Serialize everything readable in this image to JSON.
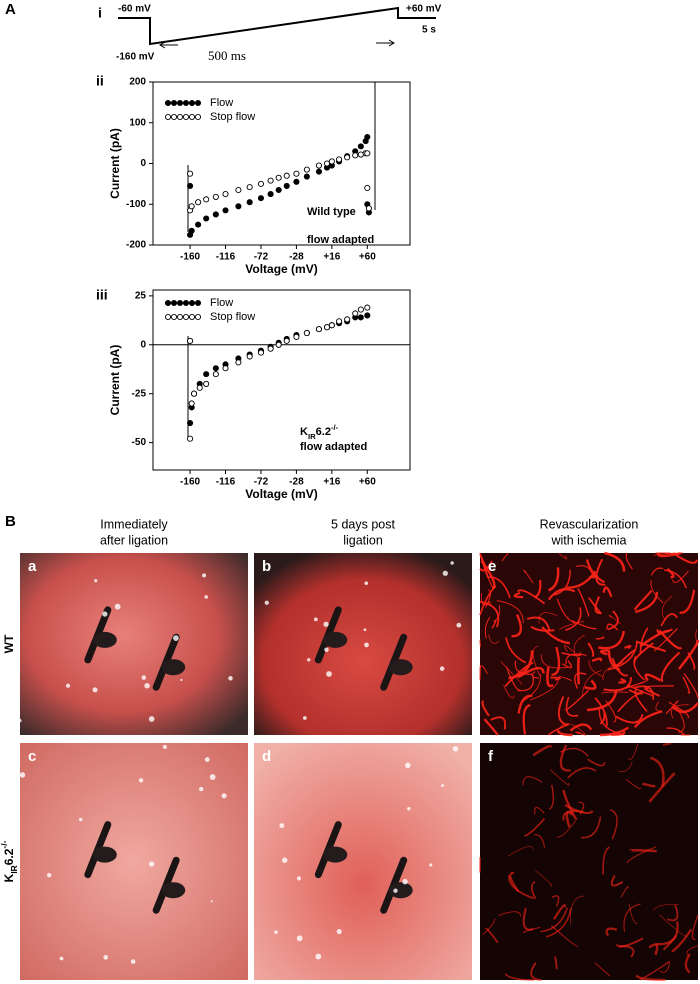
{
  "figure": {
    "panel_A": {
      "label": "A",
      "protocol": {
        "label": "i",
        "start": "-60 mV",
        "step": "-160 mV",
        "end": "+60 mV",
        "ramp_duration": "500 ms",
        "tail_duration": "5 s"
      },
      "sub_labels": [
        "ii",
        "iii"
      ]
    },
    "panel_B": {
      "label": "B",
      "columns": [
        [
          "Immediately",
          "after ligation"
        ],
        [
          "5 days post",
          "ligation"
        ],
        [
          "Revascularization",
          "with ischemia"
        ]
      ],
      "rows": [
        "WT",
        {
          "base": "K",
          "sub": "IR",
          "main": "6.2",
          "sup": "-/-"
        }
      ],
      "images": [
        "a",
        "b",
        "e",
        "c",
        "d",
        "f"
      ]
    }
  },
  "chart_data": [
    {
      "type": "scatter",
      "x_label": "Voltage (mV)",
      "y_label": "Current (pA)",
      "xlim": [
        -206,
        113
      ],
      "xticks": [
        -160,
        -116,
        -72,
        -28,
        {
          "value": 16,
          "label": "+16"
        },
        {
          "value": 60,
          "label": "+60"
        }
      ],
      "ylim": [
        -200,
        200
      ],
      "yticks": [
        -200,
        -100,
        0,
        100,
        200
      ],
      "legend": "upper left",
      "series": [
        {
          "name": "Flow",
          "color": "#000000",
          "marker": "filled",
          "x": [
            -160,
            -160,
            -158,
            -150,
            -140,
            -128,
            -116,
            -100,
            -86,
            -72,
            -60,
            -50,
            -40,
            -28,
            -15,
            0,
            10,
            16,
            25,
            35,
            45,
            52,
            58,
            60,
            60,
            62
          ],
          "values": [
            -55,
            -175,
            -165,
            -150,
            -135,
            -125,
            -115,
            -105,
            -95,
            -85,
            -75,
            -65,
            -55,
            -45,
            -32,
            -20,
            -10,
            -5,
            5,
            18,
            30,
            42,
            55,
            65,
            -100,
            -120
          ]
        },
        {
          "name": "Stop flow",
          "color": "#000000",
          "marker": "open",
          "x": [
            -160,
            -160,
            -158,
            -150,
            -140,
            -128,
            -116,
            -100,
            -86,
            -72,
            -60,
            -50,
            -40,
            -28,
            -15,
            0,
            10,
            16,
            25,
            35,
            45,
            52,
            58,
            60,
            60,
            62
          ],
          "values": [
            -25,
            -115,
            -105,
            -95,
            -88,
            -82,
            -75,
            -65,
            -58,
            -50,
            -42,
            -35,
            -30,
            -25,
            -15,
            -5,
            0,
            5,
            10,
            15,
            20,
            22,
            25,
            25,
            -60,
            -110
          ]
        }
      ],
      "annotations": [
        "Wild type",
        "flow adapted"
      ]
    },
    {
      "type": "scatter",
      "x_label": "Voltage (mV)",
      "y_label": "Current (pA)",
      "xlim": [
        -206,
        113
      ],
      "xticks": [
        -160,
        -116,
        -72,
        -28,
        {
          "value": 16,
          "label": "+16"
        },
        {
          "value": 60,
          "label": "+60"
        }
      ],
      "ylim": [
        -64,
        28
      ],
      "yticks": [
        -50,
        -25,
        0,
        25
      ],
      "legend": "upper left",
      "zero_line": true,
      "series": [
        {
          "name": "Flow",
          "color": "#000000",
          "marker": "filled",
          "x": [
            -160,
            -160,
            -158,
            -155,
            -148,
            -140,
            -128,
            -116,
            -100,
            -86,
            -72,
            -60,
            -50,
            -40,
            -28,
            -15,
            0,
            10,
            16,
            25,
            35,
            45,
            52,
            60
          ],
          "values": [
            2,
            -40,
            -32,
            -25,
            -20,
            -15,
            -12,
            -10,
            -7,
            -5,
            -3,
            -1,
            1,
            3,
            5,
            6,
            8,
            9,
            10,
            11,
            12,
            14,
            14,
            15
          ]
        },
        {
          "name": "Stop flow",
          "color": "#000000",
          "marker": "open",
          "x": [
            -160,
            -160,
            -158,
            -155,
            -148,
            -140,
            -128,
            -116,
            -100,
            -86,
            -72,
            -60,
            -50,
            -40,
            -28,
            -15,
            0,
            10,
            16,
            25,
            35,
            45,
            52,
            60
          ],
          "values": [
            2,
            -48,
            -30,
            -25,
            -22,
            -20,
            -15,
            -12,
            -9,
            -6,
            -4,
            -2,
            0,
            2,
            4,
            6,
            8,
            9,
            10,
            12,
            13,
            16,
            18,
            19
          ]
        }
      ],
      "annotations": [
        {
          "base": "K",
          "sub": "IR",
          "main": "6.2",
          "sup": "-/-"
        },
        "flow adapted"
      ]
    }
  ]
}
